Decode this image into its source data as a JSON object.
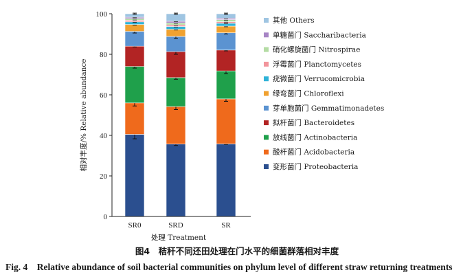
{
  "chart_data": {
    "type": "bar",
    "stacked": true,
    "categories": [
      "SR0",
      "SRD",
      "SR"
    ],
    "xlabel": "处理 Treatment",
    "ylabel": "相对丰度/% Relative abundance",
    "ylim": [
      0,
      100
    ],
    "yticks": [
      "0",
      "20",
      "40",
      "60",
      "80",
      "100"
    ],
    "legend_position": "right",
    "series": [
      {
        "name": "变形菌门 Proteobacteria",
        "color": "#2b4f8f",
        "values": [
          40.5,
          35.7,
          35.8
        ],
        "errors": [
          2.2,
          0.7,
          0.3
        ]
      },
      {
        "name": "酸杆菌门 Acidobacteria",
        "color": "#ef6a1c",
        "values": [
          15.5,
          18.5,
          22.2
        ],
        "errors": [
          1.5,
          1.5,
          1.2
        ]
      },
      {
        "name": "放线菌门 Actinobacteria",
        "color": "#1fa04b",
        "values": [
          18.0,
          14.3,
          13.8
        ],
        "errors": [
          0.8,
          0.8,
          1.4
        ]
      },
      {
        "name": "拟杆菌门 Bacteroidetes",
        "color": "#b22424",
        "values": [
          10.0,
          12.8,
          10.3
        ],
        "errors": [
          0.4,
          1.3,
          0.4
        ]
      },
      {
        "name": "芽单胞菌门 Gemmatimonadetes",
        "color": "#5b93d1",
        "values": [
          7.3,
          7.5,
          8.5
        ],
        "errors": [
          0.8,
          1.0,
          0.6
        ]
      },
      {
        "name": "绿弯菌门 Chloroflexi",
        "color": "#f0a130",
        "values": [
          3.4,
          3.5,
          3.3
        ],
        "errors": [
          0.3,
          0.3,
          0.3
        ]
      },
      {
        "name": "疣微菌门 Verrucomicrobia",
        "color": "#2fb3d8",
        "values": [
          1.3,
          1.4,
          1.4
        ],
        "errors": [
          0.2,
          0.2,
          0.2
        ]
      },
      {
        "name": "浮霉菌门 Planctomycetes",
        "color": "#f2959c",
        "values": [
          0.8,
          0.8,
          0.8
        ],
        "errors": [
          0.2,
          0.2,
          0.2
        ]
      },
      {
        "name": "硝化螺旋菌门 Nitrospirae",
        "color": "#b4dca4",
        "values": [
          0.8,
          1.0,
          1.0
        ],
        "errors": [
          0.2,
          0.2,
          0.2
        ]
      },
      {
        "name": "单糖菌门 Saccharibacteria",
        "color": "#a785c5",
        "values": [
          0.7,
          0.8,
          0.7
        ],
        "errors": [
          0.2,
          0.2,
          0.2
        ]
      },
      {
        "name": "其他 Others",
        "color": "#9fc5e2",
        "values": [
          1.7,
          3.7,
          2.2
        ],
        "errors": [
          0.3,
          0.3,
          0.3
        ]
      }
    ]
  },
  "caption": {
    "chinese": "图4　秸秆不同还田处理在门水平的细菌群落相对丰度",
    "english": "Fig. 4　Relative abundance of soil bacterial communities on phylum level of different straw returning treatments"
  }
}
